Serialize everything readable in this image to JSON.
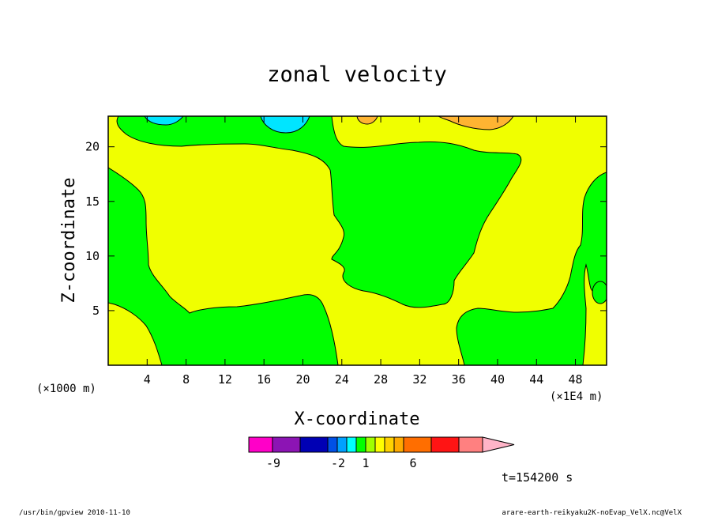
{
  "chart_data": {
    "type": "contour",
    "title": "zonal velocity",
    "xlabel": "X-coordinate",
    "ylabel": "Z-coordinate",
    "x_unit_left": "(×1000 m)",
    "x_unit_right": "(×1E4 m)",
    "xlim": [
      0,
      51.2
    ],
    "ylim": [
      0,
      22.8
    ],
    "x_ticks": [
      4,
      8,
      12,
      16,
      20,
      24,
      28,
      32,
      36,
      40,
      44,
      48
    ],
    "y_ticks": [
      5,
      10,
      15,
      20
    ],
    "fill_colors": {
      "negative_strong": "#00e5ff",
      "weak_negative": "#00ff00",
      "weak_positive": "#f0ff00",
      "positive_moderate": "#ffb432"
    },
    "colorbar": {
      "colors": [
        "#ff00c8",
        "#8c14b4",
        "#0000b4",
        "#0050e6",
        "#00a0ff",
        "#00ffff",
        "#00ff00",
        "#a0ff00",
        "#ffff00",
        "#ffd200",
        "#ffaa00",
        "#ff6e00",
        "#ff1414",
        "#ff8080",
        "#ffb4c8"
      ],
      "tick_labels": [
        "-9",
        "-2",
        "1",
        "6"
      ]
    },
    "time_label": "t=154200 s"
  },
  "footer": {
    "left": "/usr/bin/gpview  2010-11-10",
    "right": "arare-earth-reikyaku2K-noEvap_VelX.nc@VelX"
  }
}
